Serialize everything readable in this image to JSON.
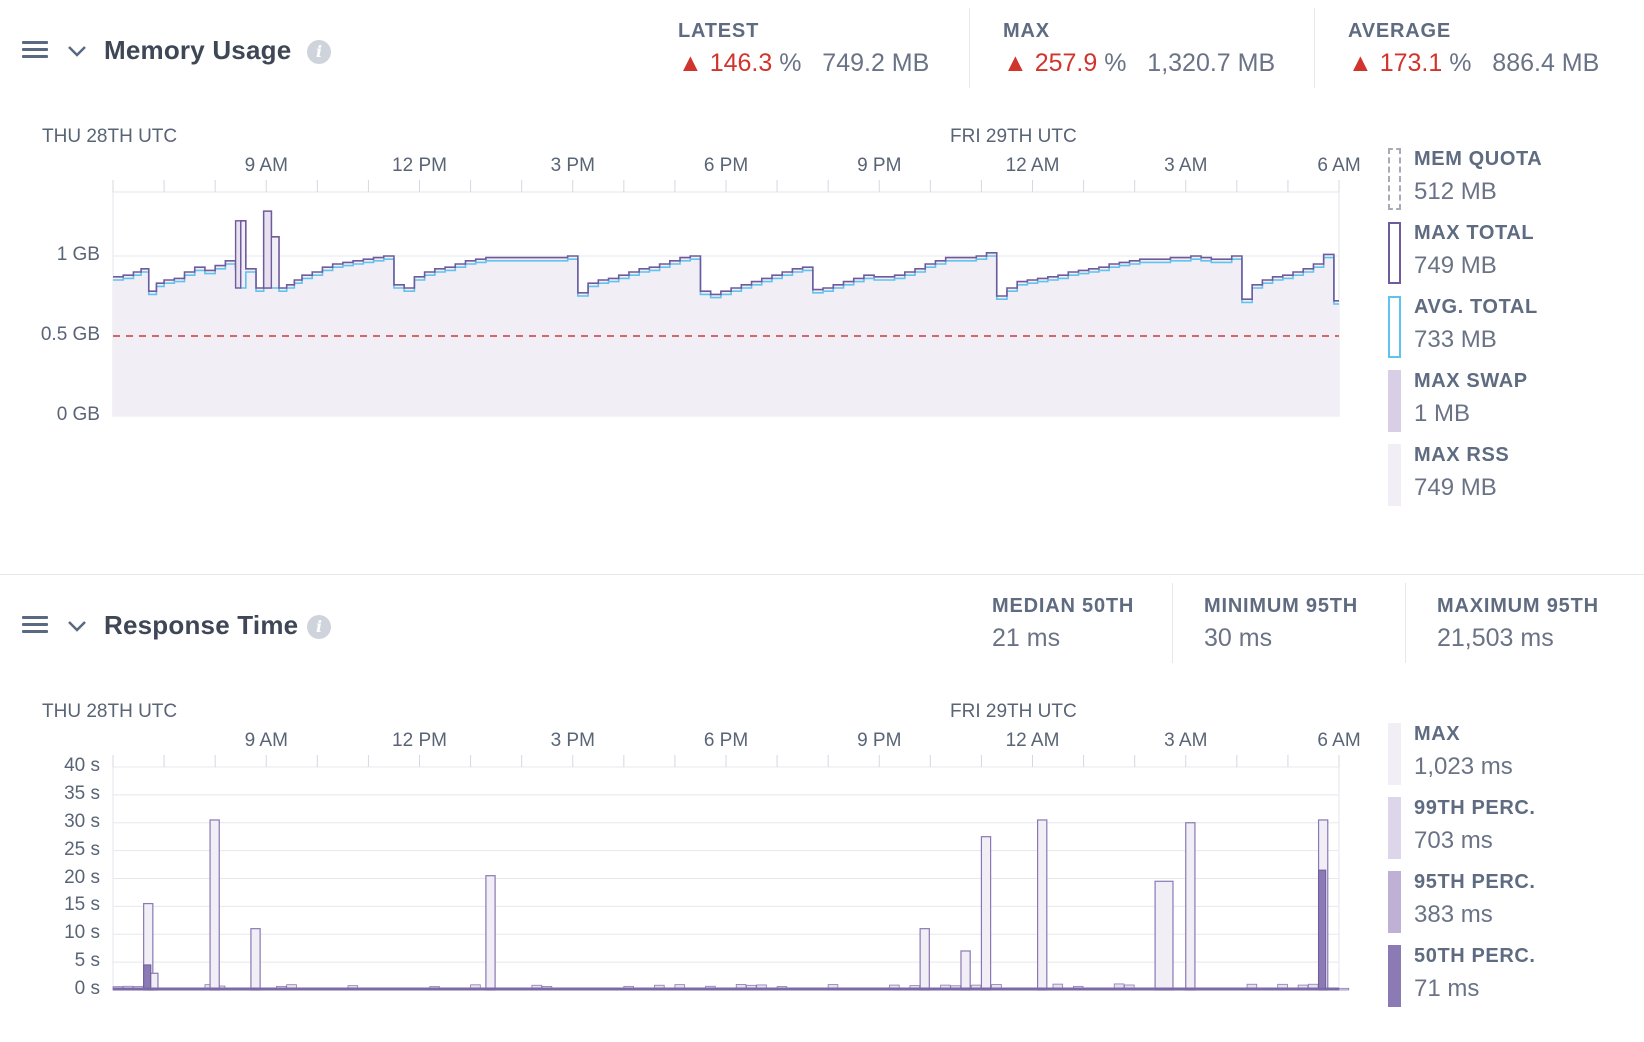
{
  "memory": {
    "title": "Memory Usage",
    "stats": [
      {
        "label": "LATEST",
        "pct": "146.3",
        "pct_unit": "%",
        "size": "749.2 MB",
        "warning": true
      },
      {
        "label": "MAX",
        "pct": "257.9",
        "pct_unit": "%",
        "size": "1,320.7 MB",
        "warning": true
      },
      {
        "label": "AVERAGE",
        "pct": "173.1",
        "pct_unit": "%",
        "size": "886.4 MB",
        "warning": true
      }
    ],
    "day_labels": [
      "THU 28TH UTC",
      "FRI 29TH UTC"
    ],
    "legend": [
      {
        "label": "MEM QUOTA",
        "value": "512 MB",
        "style": "dashed"
      },
      {
        "label": "MAX TOTAL",
        "value": "749 MB",
        "style": "outline-purple"
      },
      {
        "label": "AVG. TOTAL",
        "value": "733 MB",
        "style": "outline-blue"
      },
      {
        "label": "MAX SWAP",
        "value": "1 MB",
        "style": "fill-mid"
      },
      {
        "label": "MAX RSS",
        "value": "749 MB",
        "style": "fill-light"
      }
    ]
  },
  "response": {
    "title": "Response Time",
    "stats": [
      {
        "label": "MEDIAN 50TH",
        "value": "21 ms"
      },
      {
        "label": "MINIMUM 95TH",
        "value": "30 ms"
      },
      {
        "label": "MAXIMUM 95TH",
        "value": "21,503 ms"
      }
    ],
    "day_labels": [
      "THU 28TH UTC",
      "FRI 29TH UTC"
    ],
    "legend": [
      {
        "label": "MAX",
        "value": "1,023 ms",
        "style": "fill-1"
      },
      {
        "label": "99TH PERC.",
        "value": "703 ms",
        "style": "fill-2"
      },
      {
        "label": "95TH PERC.",
        "value": "383 ms",
        "style": "fill-3"
      },
      {
        "label": "50TH PERC.",
        "value": "71 ms",
        "style": "fill-4"
      }
    ]
  },
  "colors": {
    "accent_purple": "#7b6aa6",
    "accent_blue": "#5fc3ee",
    "quota_red": "#cc3a3a",
    "warning_red": "#d0342c",
    "fill_light": "#f1eef6",
    "fill_mid": "#d8cfe6"
  },
  "icons": {
    "menu": "hamburger-icon",
    "collapse": "chevron-down-icon",
    "info": "info-icon",
    "warning": "warning-triangle-icon"
  },
  "chart_data": [
    {
      "type": "line",
      "title": "Memory Usage",
      "x_unit": "hours since Thu 28th 05:00 UTC",
      "xlim": [
        0,
        24
      ],
      "x_ticks": [
        {
          "label": "9 AM",
          "x": 3
        },
        {
          "label": "12 PM",
          "x": 6
        },
        {
          "label": "3 PM",
          "x": 9
        },
        {
          "label": "6 PM",
          "x": 12
        },
        {
          "label": "9 PM",
          "x": 15
        },
        {
          "label": "12 AM",
          "x": 18
        },
        {
          "label": "3 AM",
          "x": 21
        },
        {
          "label": "6 AM",
          "x": 24
        }
      ],
      "y_ticks": [
        {
          "label": "0 GB",
          "v": 0
        },
        {
          "label": "0.5 GB",
          "v": 0.5
        },
        {
          "label": "1 GB",
          "v": 1
        }
      ],
      "ylim": [
        0,
        1.4
      ],
      "quota": 0.5,
      "series": [
        {
          "name": "MAX TOTAL",
          "x": [
            0,
            0.2,
            0.4,
            0.55,
            0.7,
            0.85,
            1,
            1.2,
            1.4,
            1.6,
            1.8,
            2,
            2.2,
            2.4,
            2.5,
            2.6,
            2.8,
            2.95,
            3.1,
            3.25,
            3.4,
            3.55,
            3.7,
            3.9,
            4.1,
            4.3,
            4.5,
            4.7,
            4.9,
            5.1,
            5.3,
            5.5,
            5.7,
            5.9,
            6.1,
            6.3,
            6.5,
            6.7,
            6.9,
            7.1,
            7.3,
            7.5,
            7.7,
            7.9,
            8.1,
            8.3,
            8.5,
            8.7,
            8.9,
            9.1,
            9.3,
            9.5,
            9.7,
            9.9,
            10.1,
            10.3,
            10.5,
            10.7,
            10.9,
            11.1,
            11.3,
            11.5,
            11.7,
            11.9,
            12.1,
            12.3,
            12.5,
            12.7,
            12.9,
            13.1,
            13.3,
            13.5,
            13.7,
            13.9,
            14.1,
            14.3,
            14.5,
            14.7,
            14.9,
            15.1,
            15.3,
            15.5,
            15.7,
            15.9,
            16.1,
            16.3,
            16.5,
            16.7,
            16.9,
            17.1,
            17.3,
            17.5,
            17.7,
            17.9,
            18.1,
            18.3,
            18.5,
            18.7,
            18.9,
            19.1,
            19.3,
            19.5,
            19.7,
            19.9,
            20.1,
            20.3,
            20.5,
            20.7,
            20.9,
            21.1,
            21.3,
            21.5,
            21.7,
            21.9,
            22.1,
            22.3,
            22.5,
            22.7,
            22.9,
            23.1,
            23.3,
            23.5,
            23.7,
            23.9,
            24
          ],
          "values": [
            0.87,
            0.88,
            0.9,
            0.92,
            0.78,
            0.83,
            0.85,
            0.86,
            0.9,
            0.93,
            0.91,
            0.94,
            0.97,
            0.93,
            1.22,
            0.92,
            0.8,
            1.28,
            1.12,
            0.8,
            0.82,
            0.85,
            0.88,
            0.9,
            0.93,
            0.95,
            0.96,
            0.97,
            0.98,
            0.99,
            1.0,
            0.82,
            0.8,
            0.87,
            0.9,
            0.92,
            0.93,
            0.95,
            0.97,
            0.98,
            0.99,
            0.99,
            0.99,
            0.99,
            0.99,
            0.99,
            0.99,
            0.99,
            1.0,
            0.77,
            0.83,
            0.85,
            0.86,
            0.88,
            0.9,
            0.92,
            0.93,
            0.95,
            0.97,
            0.99,
            1.0,
            0.78,
            0.76,
            0.78,
            0.8,
            0.82,
            0.84,
            0.86,
            0.88,
            0.9,
            0.92,
            0.93,
            0.79,
            0.8,
            0.82,
            0.84,
            0.86,
            0.88,
            0.87,
            0.87,
            0.88,
            0.9,
            0.92,
            0.95,
            0.97,
            0.99,
            0.99,
            0.99,
            1.0,
            1.02,
            0.75,
            0.8,
            0.84,
            0.85,
            0.86,
            0.87,
            0.88,
            0.9,
            0.91,
            0.92,
            0.93,
            0.95,
            0.96,
            0.97,
            0.98,
            0.98,
            0.98,
            0.99,
            0.99,
            1.0,
            0.99,
            0.98,
            0.98,
            1.0,
            0.73,
            0.82,
            0.85,
            0.87,
            0.88,
            0.9,
            0.92,
            0.95,
            1.01,
            0.72,
            0.72
          ]
        },
        {
          "name": "AVG. TOTAL",
          "note": "tracks max total slightly below, dips at restarts"
        }
      ]
    },
    {
      "type": "bar",
      "title": "Response Time",
      "x_unit": "hours since Thu 28th 05:00 UTC",
      "xlim": [
        0,
        24
      ],
      "x_ticks": [
        {
          "label": "9 AM",
          "x": 3
        },
        {
          "label": "12 PM",
          "x": 6
        },
        {
          "label": "3 PM",
          "x": 9
        },
        {
          "label": "6 PM",
          "x": 12
        },
        {
          "label": "9 PM",
          "x": 15
        },
        {
          "label": "12 AM",
          "x": 18
        },
        {
          "label": "3 AM",
          "x": 21
        },
        {
          "label": "6 AM",
          "x": 24
        }
      ],
      "y_ticks": [
        {
          "label": "0 s",
          "v": 0
        },
        {
          "label": "5 s",
          "v": 5
        },
        {
          "label": "10 s",
          "v": 10
        },
        {
          "label": "15 s",
          "v": 15
        },
        {
          "label": "20 s",
          "v": 20
        },
        {
          "label": "25 s",
          "v": 25
        },
        {
          "label": "30 s",
          "v": 30
        },
        {
          "label": "35 s",
          "v": 35
        },
        {
          "label": "40 s",
          "v": 40
        }
      ],
      "ylim": [
        0,
        40
      ],
      "series": [
        {
          "name": "MAX",
          "spikes": [
            [
              0.6,
              15.5
            ],
            [
              0.7,
              3
            ],
            [
              1.9,
              30.5
            ],
            [
              2.7,
              11
            ],
            [
              7.3,
              20.5
            ],
            [
              15.8,
              11
            ],
            [
              16.6,
              7
            ],
            [
              17.0,
              27.5
            ],
            [
              18.1,
              30.5
            ],
            [
              20.4,
              19.5
            ],
            [
              21.0,
              30
            ],
            [
              23.6,
              30.5
            ]
          ]
        },
        {
          "name": "50TH PERC.",
          "spikes": [
            [
              0.6,
              4.5
            ],
            [
              23.6,
              21.5
            ]
          ]
        }
      ]
    }
  ]
}
